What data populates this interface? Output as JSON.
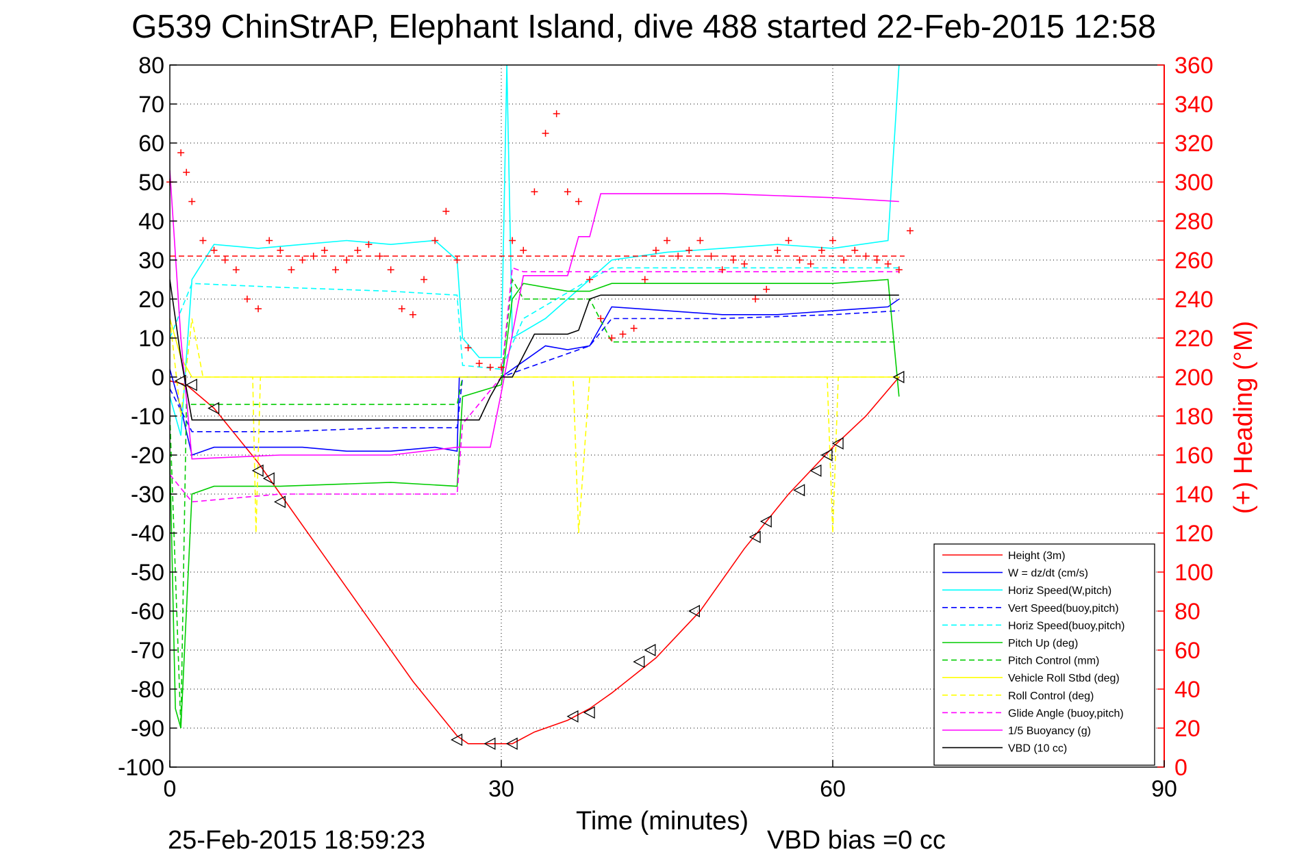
{
  "chart_data": {
    "type": "line",
    "title": "G539 ChinStrAP, Elephant Island, dive 488 started 22-Feb-2015 12:58",
    "xlabel": "Time (minutes)",
    "ylabel_right": "(+) Heading (°M)",
    "xlim": [
      0,
      90
    ],
    "ylim_left": [
      -100,
      80
    ],
    "ylim_right": [
      0,
      360
    ],
    "x_ticks": [
      0,
      30,
      60,
      90
    ],
    "y_left_ticks": [
      80,
      70,
      60,
      50,
      40,
      30,
      20,
      10,
      0,
      -10,
      -20,
      -30,
      -40,
      -50,
      -60,
      -70,
      -80,
      -90,
      -100
    ],
    "y_right_ticks": [
      360,
      340,
      320,
      300,
      280,
      260,
      240,
      220,
      200,
      180,
      160,
      140,
      120,
      100,
      80,
      60,
      40,
      20,
      0
    ],
    "grid": true,
    "legend_position": "bottom-right",
    "footer_left": "25-Feb-2015 18:59:23",
    "footer_right": "VBD bias =0 cc",
    "colors": {
      "red": "#ff0000",
      "blue": "#0000ff",
      "cyan": "#00ffff",
      "green": "#00cc00",
      "yellow": "#ffff00",
      "magenta": "#ff00ff",
      "black": "#000000"
    },
    "series": [
      {
        "name": "Height (3m)",
        "color": "#ff0000",
        "dash": "solid",
        "x": [
          0,
          1.5,
          4,
          6,
          8,
          10,
          14,
          18,
          22,
          26,
          27,
          29,
          31,
          33,
          36,
          38,
          40,
          44,
          48,
          52,
          56,
          60,
          63,
          66
        ],
        "y": [
          -1,
          -2,
          -8,
          -15,
          -22,
          -30,
          -46,
          -62,
          -78,
          -92,
          -94,
          -94,
          -94,
          -91,
          -88,
          -85,
          -81,
          -72,
          -60,
          -44,
          -30,
          -18,
          -10,
          0
        ]
      },
      {
        "name": "W = dz/dt (cm/s)",
        "color": "#0000ff",
        "dash": "solid",
        "x": [
          0,
          1,
          2,
          4,
          8,
          12,
          16,
          20,
          24,
          26,
          26.2,
          28,
          30,
          32,
          34,
          36,
          38,
          40,
          45,
          50,
          55,
          60,
          65,
          66
        ],
        "y": [
          2,
          -8,
          -20,
          -18,
          -18,
          -18,
          -19,
          -19,
          -18,
          -19,
          0,
          0,
          0,
          4,
          8,
          7,
          8,
          18,
          17,
          16,
          16,
          17,
          18,
          20
        ]
      },
      {
        "name": "Horiz Speed(W,pitch)",
        "color": "#00ffff",
        "dash": "solid",
        "x": [
          0,
          1,
          2,
          4,
          8,
          12,
          16,
          20,
          24,
          26,
          26.5,
          28,
          30,
          30.5,
          31,
          34,
          36,
          38,
          40,
          45,
          50,
          55,
          60,
          65,
          66
        ],
        "y": [
          -5,
          -15,
          25,
          34,
          33,
          34,
          35,
          34,
          35,
          30,
          10,
          5,
          5,
          80,
          10,
          15,
          20,
          25,
          30,
          32,
          33,
          34,
          33,
          35,
          80
        ]
      },
      {
        "name": "Vert Speed(buoy,pitch)",
        "color": "#0000ff",
        "dash": "dashed",
        "x": [
          0,
          2,
          10,
          20,
          26,
          26.5,
          30,
          32,
          38,
          40,
          50,
          60,
          66
        ],
        "y": [
          -3,
          -14,
          -14,
          -13,
          -13,
          0,
          0,
          2,
          8,
          15,
          15,
          16,
          17
        ]
      },
      {
        "name": "Horiz Speed(buoy,pitch)",
        "color": "#00ffff",
        "dash": "dashed",
        "x": [
          0,
          2,
          10,
          20,
          26,
          26.5,
          30,
          32,
          38,
          40,
          50,
          60,
          66
        ],
        "y": [
          10,
          24,
          23,
          22,
          21,
          3,
          2,
          15,
          25,
          28,
          28,
          28,
          28
        ]
      },
      {
        "name": "Pitch Up (deg)",
        "color": "#00cc00",
        "dash": "solid",
        "x": [
          0,
          0.5,
          1,
          2,
          4,
          10,
          20,
          26,
          26.5,
          30,
          31,
          32,
          36,
          38,
          40,
          50,
          60,
          65,
          66
        ],
        "y": [
          -20,
          -85,
          -90,
          -30,
          -28,
          -28,
          -27,
          -28,
          -5,
          -2,
          20,
          24,
          22,
          22,
          24,
          24,
          24,
          25,
          -5
        ]
      },
      {
        "name": "Pitch Control (mm)",
        "color": "#00cc00",
        "dash": "dashed",
        "x": [
          0,
          1,
          1.5,
          10,
          20,
          26,
          26.5,
          30,
          31,
          32,
          38,
          40,
          50,
          60,
          66
        ],
        "y": [
          -10,
          -90,
          -7,
          -7,
          -7,
          -7,
          0,
          0,
          25,
          20,
          20,
          9,
          9,
          9,
          9
        ]
      },
      {
        "name": "Vehicle Roll Stbd (deg)",
        "color": "#ffff00",
        "dash": "solid",
        "x": [
          0,
          1,
          2,
          3,
          6,
          10,
          15,
          20,
          25,
          30,
          35,
          40,
          45,
          50,
          55,
          60,
          63,
          66
        ],
        "y": [
          15,
          5,
          0,
          0,
          0,
          0,
          0,
          0,
          0,
          0,
          0,
          0,
          0,
          0,
          0,
          0,
          0,
          0
        ]
      },
      {
        "name": "Roll Control (deg)",
        "color": "#ffff00",
        "dash": "dashed",
        "x": [
          0,
          1,
          2,
          3,
          7.5,
          7.8,
          8.2,
          10,
          20,
          30,
          36.5,
          37,
          38,
          39,
          59.5,
          60,
          60.5,
          66
        ],
        "y": [
          15,
          -10,
          15,
          0,
          0,
          -40,
          0,
          0,
          0,
          0,
          0,
          -40,
          0,
          0,
          0,
          -40,
          0,
          0
        ]
      },
      {
        "name": "Glide Angle (buoy,pitch)",
        "color": "#ff00ff",
        "dash": "dashed",
        "x": [
          0,
          2,
          10,
          20,
          26,
          26.5,
          30,
          31,
          32,
          38,
          40,
          50,
          60,
          66
        ],
        "y": [
          -25,
          -32,
          -30,
          -30,
          -30,
          -12,
          0,
          28,
          27,
          27,
          27,
          27,
          27,
          27
        ]
      },
      {
        "name": "1/5 Buoyancy (g)",
        "color": "#ff00ff",
        "dash": "solid",
        "x": [
          0,
          1,
          2,
          10,
          20,
          26,
          26.5,
          29,
          30,
          32,
          36,
          37,
          38,
          39,
          50,
          60,
          66
        ],
        "y": [
          53,
          10,
          -21,
          -20,
          -20,
          -18,
          -18,
          -18,
          -4,
          26,
          26,
          36,
          36,
          47,
          47,
          46,
          45
        ]
      },
      {
        "name": "VBD (10 cc)",
        "color": "#000000",
        "dash": "solid",
        "x": [
          0,
          1,
          2,
          10,
          20,
          26,
          28,
          29,
          30,
          31,
          33,
          36,
          37,
          38,
          39,
          50,
          60,
          66
        ],
        "y": [
          25,
          5,
          -11,
          -11,
          -11,
          -11,
          -11,
          -5,
          0,
          0,
          11,
          11,
          12,
          20,
          21,
          21,
          21,
          21
        ]
      }
    ],
    "heading": {
      "name": "(+) Heading (°M)",
      "axis": "right",
      "marker": "+",
      "color": "#ff0000",
      "x": [
        0,
        1,
        1.5,
        2,
        3,
        4,
        5,
        6,
        7,
        8,
        9,
        10,
        11,
        12,
        13,
        14,
        15,
        16,
        17,
        18,
        19,
        20,
        21,
        22,
        23,
        24,
        25,
        26,
        27,
        28,
        29,
        30,
        31,
        32,
        33,
        34,
        35,
        36,
        37,
        38,
        39,
        40,
        41,
        42,
        43,
        44,
        45,
        46,
        47,
        48,
        49,
        50,
        51,
        52,
        53,
        54,
        55,
        56,
        57,
        58,
        59,
        60,
        61,
        62,
        63,
        64,
        65,
        66,
        67
      ],
      "y": [
        300,
        315,
        305,
        290,
        270,
        265,
        260,
        255,
        240,
        235,
        270,
        265,
        255,
        260,
        262,
        265,
        255,
        260,
        265,
        268,
        262,
        255,
        235,
        232,
        250,
        270,
        285,
        260,
        215,
        207,
        205,
        205,
        270,
        265,
        295,
        325,
        335,
        295,
        290,
        250,
        230,
        220,
        222,
        225,
        250,
        265,
        270,
        262,
        265,
        270,
        262,
        255,
        260,
        258,
        240,
        245,
        265,
        270,
        260,
        258,
        265,
        270,
        260,
        265,
        262,
        260,
        258,
        255,
        275
      ]
    },
    "heading_ref": {
      "value": 262,
      "color": "#ff0000",
      "dash": "dashed"
    },
    "dive_markers": {
      "name": "triangle markers on Height",
      "x": [
        1,
        2,
        4,
        8,
        9,
        10,
        26,
        29,
        31,
        36.5,
        38,
        42.5,
        43.5,
        47.5,
        53,
        54,
        57,
        58.5,
        59.5,
        60.5,
        66
      ],
      "y": [
        -1,
        -2,
        -8,
        -24,
        -26,
        -32,
        -93,
        -94,
        -94,
        -87,
        -86,
        -73,
        -70,
        -60,
        -41,
        -37,
        -29,
        -24,
        -20,
        -17,
        0
      ]
    }
  }
}
